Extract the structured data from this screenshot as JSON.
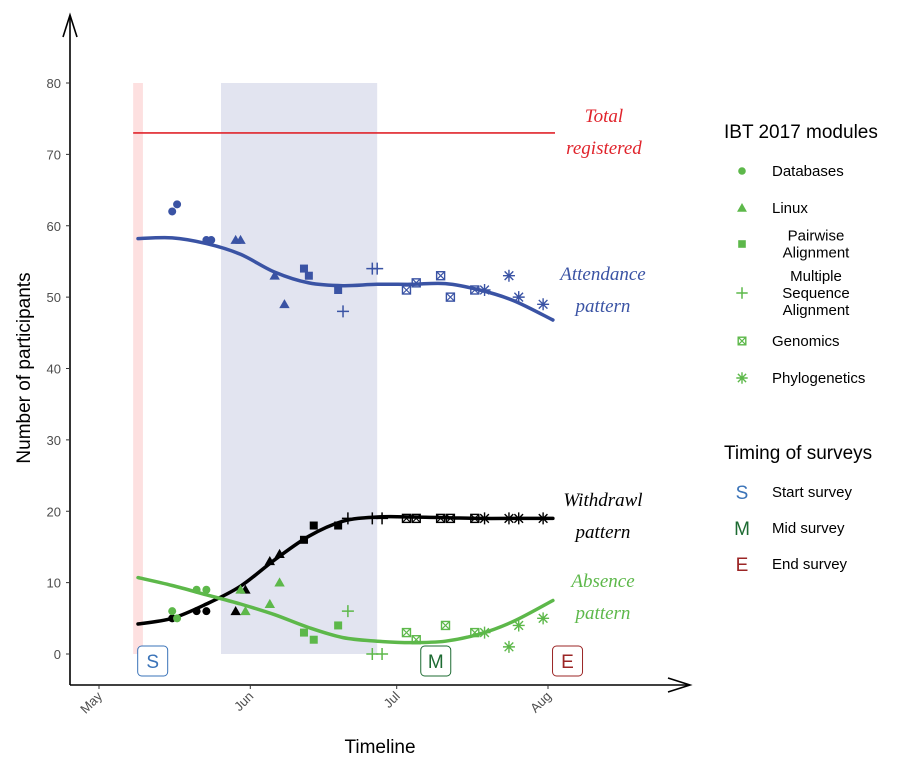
{
  "chart_data": {
    "type": "scatter",
    "xlabel": "Timeline",
    "ylabel": "Number of participants",
    "ylim": [
      0,
      80
    ],
    "yticks": [
      0,
      10,
      20,
      30,
      40,
      50,
      60,
      70,
      80
    ],
    "xticks": [
      {
        "label": "May",
        "date": "2017-05-01"
      },
      {
        "label": "Jun",
        "date": "2017-06-01"
      },
      {
        "label": "Jul",
        "date": "2017-07-01"
      },
      {
        "label": "Aug",
        "date": "2017-08-01"
      }
    ],
    "grid": false,
    "legend_position": "right",
    "total_registered": 73,
    "start_window": [
      "2017-05-08",
      "2017-05-10"
    ],
    "module_window": [
      "2017-05-26",
      "2017-06-27"
    ],
    "annotations": {
      "total": [
        "Total",
        "registered"
      ],
      "attendance": [
        "Attendance",
        "pattern"
      ],
      "withdrawl": [
        "Withdrawl",
        "pattern"
      ],
      "absence": [
        "Absence",
        "pattern"
      ]
    },
    "colors": {
      "attendance": "#3a53a4",
      "withdrawl": "#000000",
      "absence": "#5db84a",
      "total": "#e0242c",
      "module_band": "#e2e4f0",
      "start_band": "#fde0e0",
      "legend_marker": "#5db84a",
      "survey_S": "#3a73b8",
      "survey_M": "#1d6b32",
      "survey_E": "#9b2525"
    },
    "series": [
      {
        "key": "attendance",
        "points": [
          {
            "date": "2017-05-16",
            "y": 62,
            "shape": "circle"
          },
          {
            "date": "2017-05-17",
            "y": 63,
            "shape": "circle"
          },
          {
            "date": "2017-05-23",
            "y": 58,
            "shape": "circle"
          },
          {
            "date": "2017-05-24",
            "y": 58,
            "shape": "circle"
          },
          {
            "date": "2017-05-29",
            "y": 58,
            "shape": "triangle"
          },
          {
            "date": "2017-05-30",
            "y": 58,
            "shape": "triangle"
          },
          {
            "date": "2017-06-06",
            "y": 53,
            "shape": "triangle"
          },
          {
            "date": "2017-06-08",
            "y": 49,
            "shape": "triangle"
          },
          {
            "date": "2017-06-12",
            "y": 54,
            "shape": "square"
          },
          {
            "date": "2017-06-13",
            "y": 53,
            "shape": "square"
          },
          {
            "date": "2017-06-19",
            "y": 51,
            "shape": "square"
          },
          {
            "date": "2017-06-20",
            "y": 48,
            "shape": "plus"
          },
          {
            "date": "2017-06-26",
            "y": 54,
            "shape": "plus"
          },
          {
            "date": "2017-06-27",
            "y": 54,
            "shape": "plus"
          },
          {
            "date": "2017-07-03",
            "y": 51,
            "shape": "boxx"
          },
          {
            "date": "2017-07-05",
            "y": 52,
            "shape": "boxx"
          },
          {
            "date": "2017-07-10",
            "y": 53,
            "shape": "boxx"
          },
          {
            "date": "2017-07-12",
            "y": 50,
            "shape": "boxx"
          },
          {
            "date": "2017-07-17",
            "y": 51,
            "shape": "boxx"
          },
          {
            "date": "2017-07-19",
            "y": 51,
            "shape": "star"
          },
          {
            "date": "2017-07-24",
            "y": 53,
            "shape": "star"
          },
          {
            "date": "2017-07-26",
            "y": 50,
            "shape": "star"
          },
          {
            "date": "2017-07-31",
            "y": 49,
            "shape": "star"
          }
        ],
        "trend": [
          {
            "date": "2017-05-09",
            "y": 58.2
          },
          {
            "date": "2017-05-16",
            "y": 58.3
          },
          {
            "date": "2017-05-23",
            "y": 57.5
          },
          {
            "date": "2017-05-30",
            "y": 56.0
          },
          {
            "date": "2017-06-06",
            "y": 53.5
          },
          {
            "date": "2017-06-13",
            "y": 52.0
          },
          {
            "date": "2017-06-20",
            "y": 51.6
          },
          {
            "date": "2017-06-27",
            "y": 51.8
          },
          {
            "date": "2017-07-04",
            "y": 51.8
          },
          {
            "date": "2017-07-11",
            "y": 51.9
          },
          {
            "date": "2017-07-18",
            "y": 51.0
          },
          {
            "date": "2017-07-25",
            "y": 49.5
          },
          {
            "date": "2017-08-02",
            "y": 46.8
          }
        ]
      },
      {
        "key": "withdrawl",
        "points": [
          {
            "date": "2017-05-16",
            "y": 5,
            "shape": "circle"
          },
          {
            "date": "2017-05-21",
            "y": 6,
            "shape": "circle"
          },
          {
            "date": "2017-05-23",
            "y": 6,
            "shape": "circle"
          },
          {
            "date": "2017-05-29",
            "y": 6,
            "shape": "triangle"
          },
          {
            "date": "2017-05-31",
            "y": 9,
            "shape": "triangle"
          },
          {
            "date": "2017-06-05",
            "y": 13,
            "shape": "triangle"
          },
          {
            "date": "2017-06-07",
            "y": 14,
            "shape": "triangle"
          },
          {
            "date": "2017-06-12",
            "y": 16,
            "shape": "square"
          },
          {
            "date": "2017-06-14",
            "y": 18,
            "shape": "square"
          },
          {
            "date": "2017-06-19",
            "y": 18,
            "shape": "square"
          },
          {
            "date": "2017-06-21",
            "y": 19,
            "shape": "plus"
          },
          {
            "date": "2017-06-26",
            "y": 19,
            "shape": "plus"
          },
          {
            "date": "2017-06-28",
            "y": 19,
            "shape": "plus"
          },
          {
            "date": "2017-07-03",
            "y": 19,
            "shape": "boxx"
          },
          {
            "date": "2017-07-05",
            "y": 19,
            "shape": "boxx"
          },
          {
            "date": "2017-07-10",
            "y": 19,
            "shape": "boxx"
          },
          {
            "date": "2017-07-12",
            "y": 19,
            "shape": "boxx"
          },
          {
            "date": "2017-07-17",
            "y": 19,
            "shape": "boxx"
          },
          {
            "date": "2017-07-19",
            "y": 19,
            "shape": "star"
          },
          {
            "date": "2017-07-24",
            "y": 19,
            "shape": "star"
          },
          {
            "date": "2017-07-26",
            "y": 19,
            "shape": "star"
          },
          {
            "date": "2017-07-31",
            "y": 19,
            "shape": "star"
          }
        ],
        "trend": [
          {
            "date": "2017-05-09",
            "y": 4.2
          },
          {
            "date": "2017-05-16",
            "y": 5.0
          },
          {
            "date": "2017-05-23",
            "y": 7.0
          },
          {
            "date": "2017-05-30",
            "y": 9.5
          },
          {
            "date": "2017-06-06",
            "y": 13.2
          },
          {
            "date": "2017-06-13",
            "y": 16.5
          },
          {
            "date": "2017-06-20",
            "y": 18.6
          },
          {
            "date": "2017-06-27",
            "y": 19.2
          },
          {
            "date": "2017-07-04",
            "y": 19.2
          },
          {
            "date": "2017-07-11",
            "y": 19.1
          },
          {
            "date": "2017-07-18",
            "y": 19.0
          },
          {
            "date": "2017-07-25",
            "y": 19.0
          },
          {
            "date": "2017-08-02",
            "y": 19.0
          }
        ]
      },
      {
        "key": "absence",
        "points": [
          {
            "date": "2017-05-16",
            "y": 6,
            "shape": "circle"
          },
          {
            "date": "2017-05-17",
            "y": 5,
            "shape": "circle"
          },
          {
            "date": "2017-05-21",
            "y": 9,
            "shape": "circle"
          },
          {
            "date": "2017-05-23",
            "y": 9,
            "shape": "circle"
          },
          {
            "date": "2017-05-30",
            "y": 9,
            "shape": "triangle"
          },
          {
            "date": "2017-05-31",
            "y": 6,
            "shape": "triangle"
          },
          {
            "date": "2017-06-05",
            "y": 7,
            "shape": "triangle"
          },
          {
            "date": "2017-06-07",
            "y": 10,
            "shape": "triangle"
          },
          {
            "date": "2017-06-12",
            "y": 3,
            "shape": "square"
          },
          {
            "date": "2017-06-14",
            "y": 2,
            "shape": "square"
          },
          {
            "date": "2017-06-19",
            "y": 4,
            "shape": "square"
          },
          {
            "date": "2017-06-21",
            "y": 6,
            "shape": "plus"
          },
          {
            "date": "2017-06-26",
            "y": 0,
            "shape": "plus"
          },
          {
            "date": "2017-06-28",
            "y": 0,
            "shape": "plus"
          },
          {
            "date": "2017-07-03",
            "y": 3,
            "shape": "boxx"
          },
          {
            "date": "2017-07-05",
            "y": 2,
            "shape": "boxx"
          },
          {
            "date": "2017-07-11",
            "y": 4,
            "shape": "boxx"
          },
          {
            "date": "2017-07-17",
            "y": 3,
            "shape": "boxx"
          },
          {
            "date": "2017-07-19",
            "y": 3,
            "shape": "star"
          },
          {
            "date": "2017-07-24",
            "y": 1,
            "shape": "star"
          },
          {
            "date": "2017-07-26",
            "y": 4,
            "shape": "star"
          },
          {
            "date": "2017-07-31",
            "y": 5,
            "shape": "star"
          }
        ],
        "trend": [
          {
            "date": "2017-05-09",
            "y": 10.7
          },
          {
            "date": "2017-05-16",
            "y": 9.6
          },
          {
            "date": "2017-05-23",
            "y": 8.3
          },
          {
            "date": "2017-05-30",
            "y": 7.0
          },
          {
            "date": "2017-06-06",
            "y": 5.5
          },
          {
            "date": "2017-06-13",
            "y": 3.7
          },
          {
            "date": "2017-06-20",
            "y": 2.3
          },
          {
            "date": "2017-06-27",
            "y": 1.8
          },
          {
            "date": "2017-07-04",
            "y": 1.6
          },
          {
            "date": "2017-07-11",
            "y": 1.8
          },
          {
            "date": "2017-07-18",
            "y": 2.8
          },
          {
            "date": "2017-07-25",
            "y": 4.6
          },
          {
            "date": "2017-08-02",
            "y": 7.5
          }
        ]
      }
    ],
    "surveys": [
      {
        "letter": "S",
        "date": "2017-05-12",
        "label": "Start survey",
        "color_key": "survey_S"
      },
      {
        "letter": "M",
        "date": "2017-07-09",
        "label": "Mid survey",
        "color_key": "survey_M"
      },
      {
        "letter": "E",
        "date": "2017-08-05",
        "label": "End survey",
        "color_key": "survey_E"
      }
    ],
    "legend": {
      "modules_title": "IBT 2017 modules",
      "modules": [
        {
          "shape": "circle",
          "lines": [
            "Databases"
          ]
        },
        {
          "shape": "triangle",
          "lines": [
            "Linux"
          ]
        },
        {
          "shape": "square",
          "lines": [
            "Pairwise",
            "Alignment"
          ]
        },
        {
          "shape": "plus",
          "lines": [
            "Multiple",
            "Sequence",
            "Alignment"
          ]
        },
        {
          "shape": "boxx",
          "lines": [
            "Genomics"
          ]
        },
        {
          "shape": "star",
          "lines": [
            "Phylogenetics"
          ]
        }
      ],
      "surveys_title": "Timing of surveys"
    }
  }
}
